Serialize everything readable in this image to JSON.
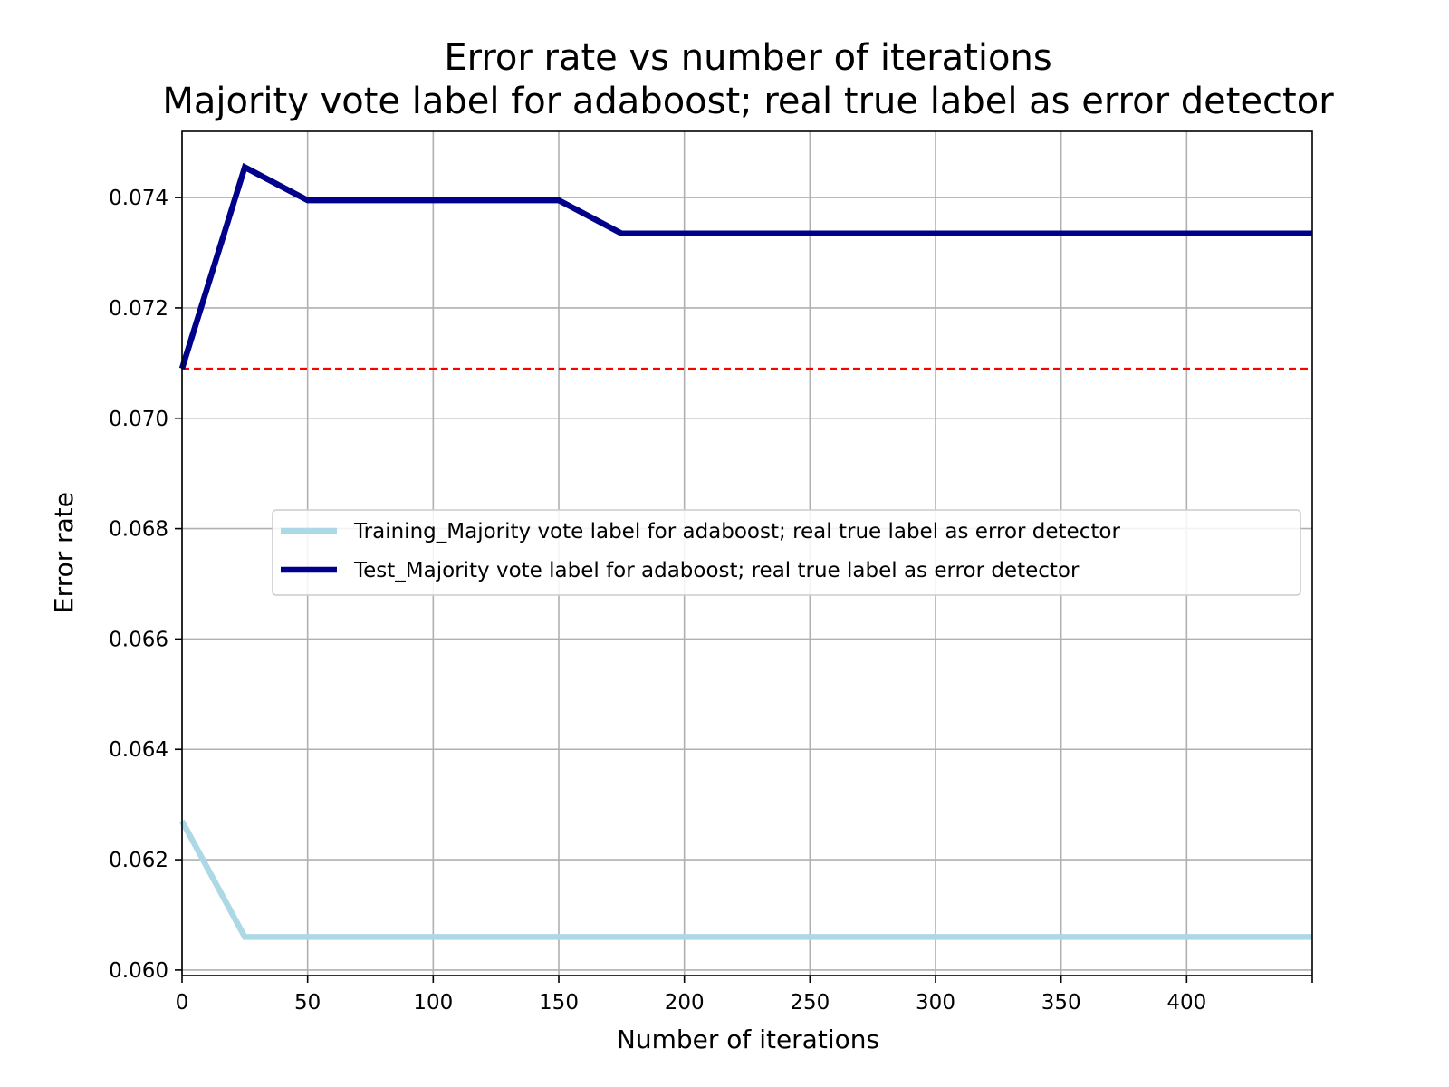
{
  "chart_data": {
    "type": "line",
    "title": [
      "Error rate vs number of iterations",
      "Majority vote label for adaboost; real true label as error detector"
    ],
    "xlabel": "Number of iterations",
    "ylabel": "Error rate",
    "xlim": [
      0,
      450
    ],
    "ylim": [
      0.0599,
      0.0752
    ],
    "xticks": [
      0,
      50,
      100,
      150,
      200,
      250,
      300,
      350,
      400
    ],
    "xtick_labels": [
      "0",
      "50",
      "100",
      "150",
      "200",
      "250",
      "300",
      "350",
      "400"
    ],
    "yticks": [
      0.06,
      0.062,
      0.064,
      0.066,
      0.068,
      0.07,
      0.072,
      0.074
    ],
    "ytick_labels": [
      "0.060",
      "0.062",
      "0.064",
      "0.066",
      "0.068",
      "0.070",
      "0.072",
      "0.074"
    ],
    "grid": true,
    "legend_position": "center-right",
    "series": [
      {
        "name": "Training_Majority vote label for adaboost; real true label as error detector",
        "color": "#add8e6",
        "x": [
          0,
          25,
          50,
          75,
          100,
          125,
          150,
          175,
          200,
          225,
          250,
          275,
          300,
          325,
          350,
          375,
          400,
          425,
          450
        ],
        "y": [
          0.0627,
          0.0606,
          0.0606,
          0.0606,
          0.0606,
          0.0606,
          0.0606,
          0.0606,
          0.0606,
          0.0606,
          0.0606,
          0.0606,
          0.0606,
          0.0606,
          0.0606,
          0.0606,
          0.0606,
          0.0606,
          0.0606
        ]
      },
      {
        "name": "Test_Majority vote label for adaboost; real true label as error detector",
        "color": "#00008b",
        "x": [
          0,
          25,
          50,
          75,
          100,
          125,
          150,
          175,
          200,
          225,
          250,
          275,
          300,
          325,
          350,
          375,
          400,
          425,
          450
        ],
        "y": [
          0.0709,
          0.07455,
          0.07395,
          0.07395,
          0.07395,
          0.07395,
          0.07395,
          0.07335,
          0.07335,
          0.07335,
          0.07335,
          0.07335,
          0.07335,
          0.07335,
          0.07335,
          0.07335,
          0.07335,
          0.07335,
          0.07335
        ]
      }
    ],
    "reference_line": {
      "y": 0.0709,
      "color": "#ff0000",
      "style": "dashed"
    }
  }
}
